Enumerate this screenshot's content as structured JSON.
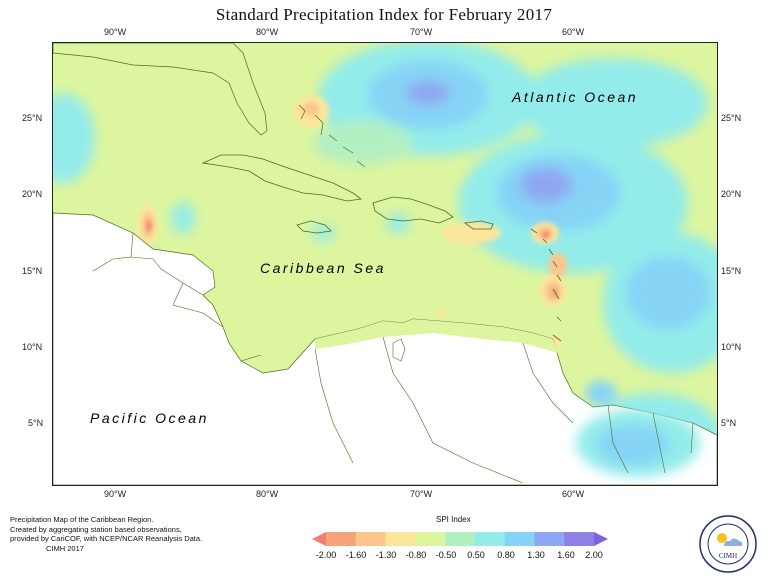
{
  "title": "Standard Precipitation Index for February 2017",
  "axes": {
    "lon_labels": [
      "90°W",
      "80°W",
      "70°W",
      "60°W"
    ],
    "lat_labels": [
      "25°N",
      "20°N",
      "15°N",
      "10°N",
      "5°N"
    ]
  },
  "labels": {
    "atlantic": "Atlantic Ocean",
    "caribbean": "Caribbean Sea",
    "pacific": "Pacific Ocean"
  },
  "footnote": [
    "Precipitation Map of the Caribbean Region.",
    "Created by aggregating station based observations,",
    "provided by CariCOF, with NCEP/NCAR Reanalysis Data.",
    "CIMH 2017"
  ],
  "legend": {
    "title": "SPI Index",
    "ticks": [
      "-2.00",
      "-1.60",
      "-1.30",
      "-0.80",
      "-0.50",
      "0.50",
      "0.80",
      "1.30",
      "1.60",
      "2.00"
    ],
    "colors": [
      "#f07f6f",
      "#f6a27b",
      "#fbc68b",
      "#fbe59b",
      "#ddf59e",
      "#b3f0c1",
      "#93ecea",
      "#86d3f6",
      "#8fa7f2",
      "#8d83e6",
      "#7f60e0"
    ]
  },
  "logo": {
    "ring_text": "Caribbean Institute for Meteorology and Hydrology",
    "name": "CIMH"
  }
}
